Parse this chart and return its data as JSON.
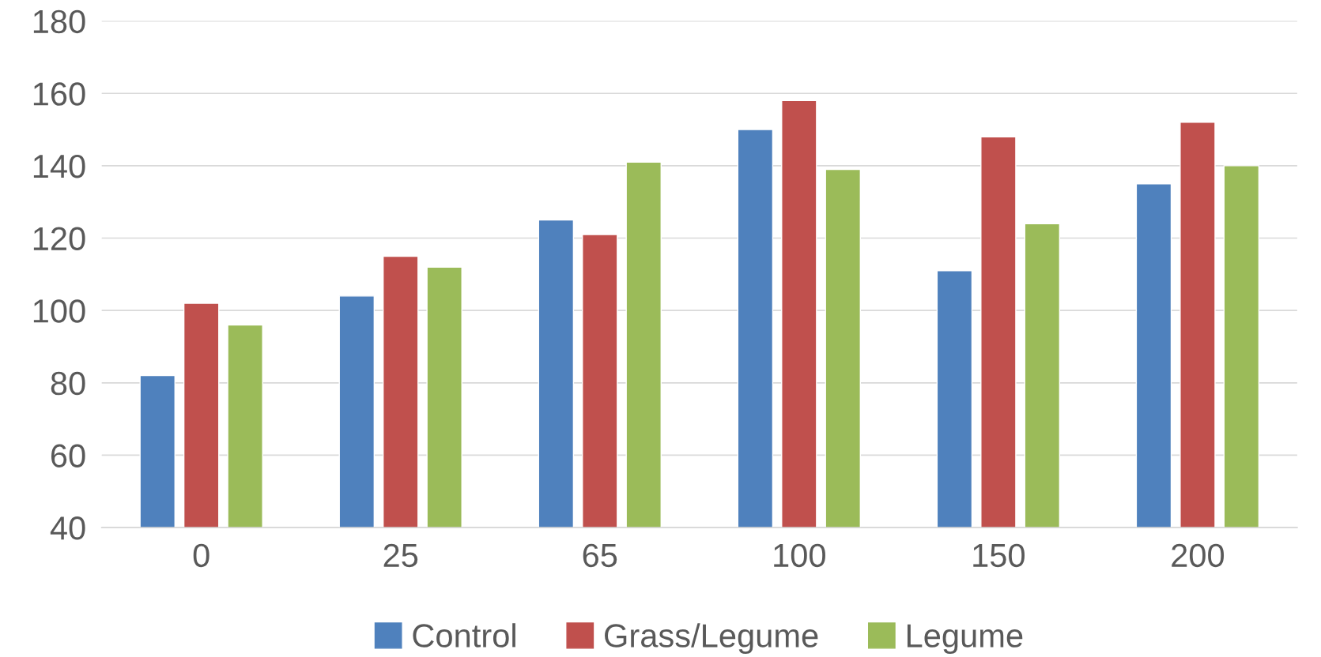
{
  "chart_data": {
    "type": "bar",
    "categories": [
      "0",
      "25",
      "65",
      "100",
      "150",
      "200"
    ],
    "series": [
      {
        "name": "Control",
        "color": "#4f81bd",
        "values": [
          82,
          104,
          125,
          150,
          111,
          135
        ]
      },
      {
        "name": "Grass/Legume",
        "color": "#c0504d",
        "values": [
          102,
          115,
          121,
          158,
          148,
          152
        ]
      },
      {
        "name": "Legume",
        "color": "#9bbb59",
        "values": [
          96,
          112,
          141,
          139,
          124,
          140
        ]
      }
    ],
    "ylim": [
      40,
      180
    ],
    "yticks": [
      40,
      60,
      80,
      100,
      120,
      140,
      160,
      180
    ],
    "grid": "y",
    "legend": "bottom"
  }
}
